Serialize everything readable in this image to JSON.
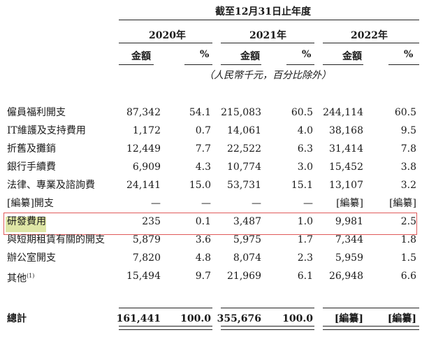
{
  "header": {
    "period_title": "截至12月31日止年度",
    "years": [
      "2020年",
      "2021年",
      "2022年"
    ],
    "col_amount": "金額",
    "col_percent": "%",
    "unit_note": "（人民幣千元，百分比除外）"
  },
  "rows": [
    {
      "label": "僱員福利開支",
      "sup": "",
      "values": [
        "87,342",
        "54.1",
        "215,083",
        "60.5",
        "244,114",
        "60.5"
      ]
    },
    {
      "label": "IT維護及支持費用",
      "sup": "",
      "values": [
        "1,172",
        "0.7",
        "14,061",
        "4.0",
        "38,168",
        "9.5"
      ]
    },
    {
      "label": "折舊及攤銷",
      "sup": "",
      "values": [
        "12,449",
        "7.7",
        "22,522",
        "6.3",
        "31,414",
        "7.8"
      ]
    },
    {
      "label": "銀行手續費",
      "sup": "",
      "values": [
        "6,909",
        "4.3",
        "10,774",
        "3.0",
        "15,452",
        "3.8"
      ]
    },
    {
      "label": "法律、專業及諮詢費",
      "sup": "",
      "values": [
        "24,141",
        "15.0",
        "53,731",
        "15.1",
        "13,107",
        "3.2"
      ]
    },
    {
      "label": "[編纂]開支",
      "sup": "",
      "values": [
        "—",
        "—",
        "—",
        "—",
        "[編纂]",
        "[編纂]"
      ]
    },
    {
      "label": "研發費用",
      "sup": "",
      "values": [
        "235",
        "0.1",
        "3,487",
        "1.0",
        "9,981",
        "2.5"
      ]
    },
    {
      "label": "與短期租賃有關的開支",
      "sup": "",
      "values": [
        "5,879",
        "3.6",
        "5,975",
        "1.7",
        "7,344",
        "1.8"
      ]
    },
    {
      "label": "辦公室開支",
      "sup": "",
      "values": [
        "7,820",
        "4.8",
        "8,074",
        "2.3",
        "5,959",
        "1.5"
      ]
    },
    {
      "label": "其他",
      "sup": "(1)",
      "values": [
        "15,494",
        "9.7",
        "21,969",
        "6.1",
        "26,948",
        "6.6"
      ]
    }
  ],
  "total": {
    "label": "總計",
    "values": [
      "161,441",
      "100.0",
      "355,676",
      "100.0",
      "[編纂]",
      "[編纂]"
    ]
  }
}
